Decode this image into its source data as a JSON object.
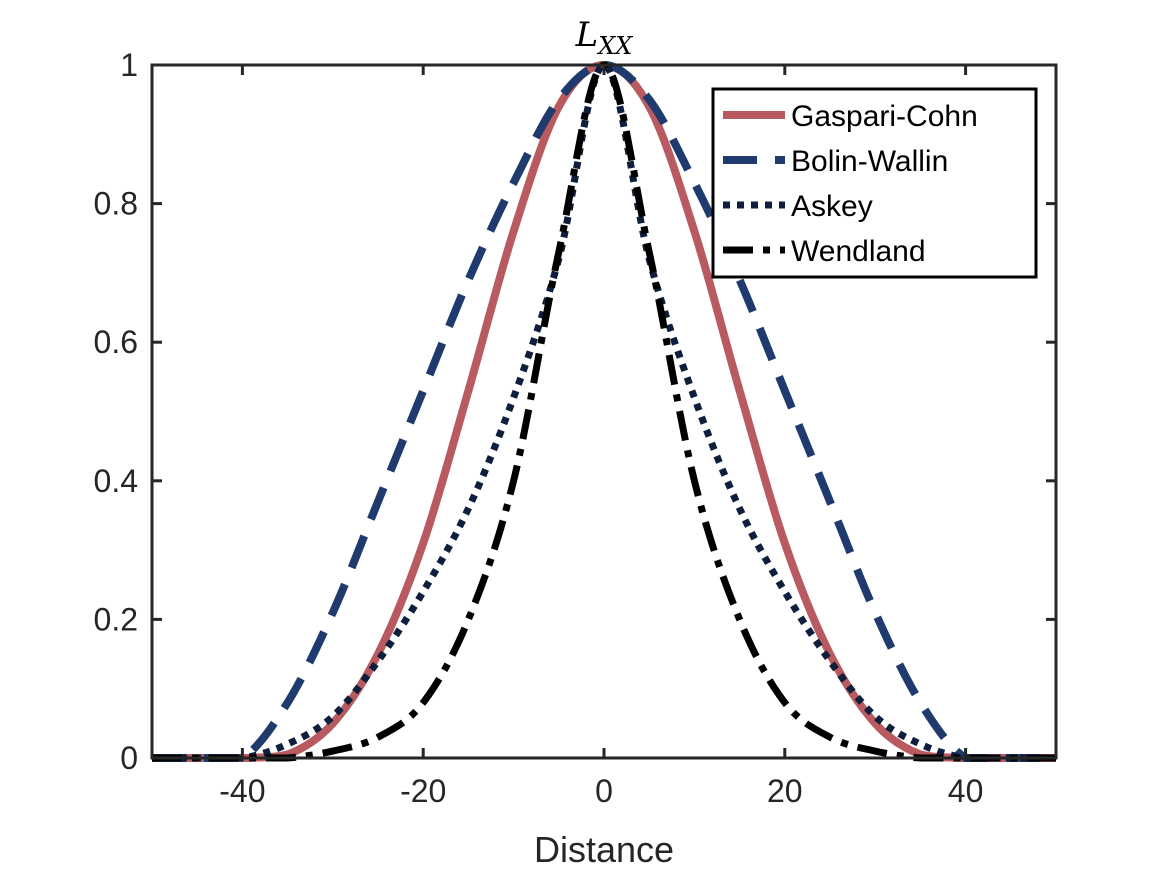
{
  "chart_data": {
    "type": "line",
    "title": "L",
    "title_subscript": "XX",
    "xlabel": "Distance",
    "ylabel": "",
    "xlim": [
      -50,
      50
    ],
    "ylim": [
      0,
      1
    ],
    "xticks": [
      -40,
      -20,
      0,
      20,
      40
    ],
    "xtick_labels": [
      "-40",
      "-20",
      "0",
      "20",
      "40"
    ],
    "yticks": [
      0,
      0.2,
      0.4,
      0.6,
      0.8,
      1
    ],
    "ytick_labels": [
      "0",
      "0.2",
      "0.4",
      "0.6",
      "0.8",
      "1"
    ],
    "grid": false,
    "legend_position": "top-right",
    "x": [
      -50,
      -45,
      -40,
      -35,
      -30,
      -25,
      -20,
      -15,
      -10,
      -5,
      0,
      5,
      10,
      15,
      20,
      25,
      30,
      35,
      40,
      45,
      50
    ],
    "series": [
      {
        "name": "Gaspari-Cohn",
        "color": "#b85a5f",
        "style": "solid",
        "values": [
          0,
          0,
          0,
          0.005,
          0.05,
          0.15,
          0.31,
          0.53,
          0.76,
          0.94,
          1,
          0.94,
          0.76,
          0.53,
          0.31,
          0.15,
          0.05,
          0.005,
          0,
          0,
          0
        ]
      },
      {
        "name": "Bolin-Wallin",
        "color": "#1f3b6e",
        "style": "dashed",
        "values": [
          0,
          0,
          0,
          0.08,
          0.21,
          0.37,
          0.53,
          0.69,
          0.83,
          0.95,
          1,
          0.95,
          0.83,
          0.69,
          0.53,
          0.37,
          0.21,
          0.08,
          0,
          0,
          0
        ]
      },
      {
        "name": "Askey",
        "color": "#0e1f3d",
        "style": "dotted",
        "values": [
          0,
          0,
          0,
          0.02,
          0.06,
          0.14,
          0.24,
          0.36,
          0.52,
          0.72,
          1,
          0.72,
          0.52,
          0.36,
          0.24,
          0.14,
          0.06,
          0.02,
          0,
          0,
          0
        ]
      },
      {
        "name": "Wendland",
        "color": "#000000",
        "style": "dashdot",
        "values": [
          0,
          0,
          0,
          0,
          0.01,
          0.03,
          0.08,
          0.2,
          0.4,
          0.73,
          1,
          0.73,
          0.4,
          0.2,
          0.08,
          0.03,
          0.01,
          0,
          0,
          0,
          0
        ]
      }
    ]
  }
}
